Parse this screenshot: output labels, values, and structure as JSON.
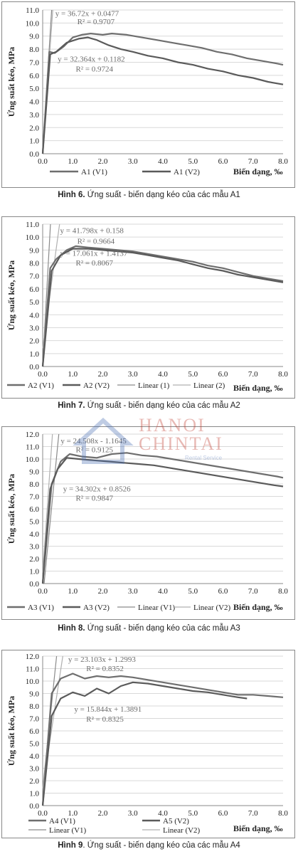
{
  "chart_data": [
    {
      "type": "line",
      "caption_bold": "Hình 6.",
      "caption_rest": " Ứng suất - biến dạng kéo của các mẫu A1",
      "ylabel": "Ứng suất kéo, MPa",
      "xlabel": "Biến dạng, ‰",
      "xlim": [
        0,
        8
      ],
      "ylim": [
        0,
        11
      ],
      "xticks": [
        "0.0",
        "1.0",
        "2.0",
        "3.0",
        "4.0",
        "5.0",
        "6.0",
        "7.0",
        "8.0"
      ],
      "yticks": [
        "0.0",
        "1.0",
        "2.0",
        "3.0",
        "4.0",
        "5.0",
        "6.0",
        "7.0",
        "8.0",
        "9.0",
        "10.0",
        "11.0"
      ],
      "grid": true,
      "legend": [
        "A1 (V1)",
        "A1 (V2)"
      ],
      "annotations": [
        {
          "text": "y = 36.72x + 0.0477",
          "x": 0.42,
          "y": 10.55
        },
        {
          "text": "R² = 0.9707",
          "x": 1.15,
          "y": 9.9
        },
        {
          "text": "y = 32.364x + 0.1182",
          "x": 0.5,
          "y": 7.05
        },
        {
          "text": "R² = 0.9724",
          "x": 1.1,
          "y": 6.3
        }
      ],
      "series": [
        {
          "points": [
            [
              0,
              0
            ],
            [
              0.22,
              7.8
            ],
            [
              0.4,
              7.7
            ],
            [
              0.7,
              8.2
            ],
            [
              1.0,
              8.9
            ],
            [
              1.3,
              9.1
            ],
            [
              1.6,
              9.2
            ],
            [
              2.0,
              9.1
            ],
            [
              2.3,
              9.2
            ],
            [
              2.8,
              9.1
            ],
            [
              3.3,
              8.9
            ],
            [
              3.8,
              8.7
            ],
            [
              4.3,
              8.5
            ],
            [
              4.8,
              8.3
            ],
            [
              5.3,
              8.1
            ],
            [
              5.8,
              7.8
            ],
            [
              6.3,
              7.6
            ],
            [
              6.8,
              7.3
            ],
            [
              7.3,
              7.1
            ],
            [
              7.8,
              6.9
            ],
            [
              8.0,
              6.8
            ]
          ]
        },
        {
          "points": [
            [
              0,
              0
            ],
            [
              0.25,
              7.6
            ],
            [
              0.45,
              7.8
            ],
            [
              0.8,
              8.5
            ],
            [
              1.2,
              8.8
            ],
            [
              1.5,
              8.9
            ],
            [
              1.8,
              8.7
            ],
            [
              2.2,
              8.3
            ],
            [
              2.6,
              8.0
            ],
            [
              3.0,
              7.8
            ],
            [
              3.5,
              7.5
            ],
            [
              4.0,
              7.3
            ],
            [
              4.5,
              7.0
            ],
            [
              5.0,
              6.8
            ],
            [
              5.5,
              6.5
            ],
            [
              6.0,
              6.3
            ],
            [
              6.5,
              6.0
            ],
            [
              7.0,
              5.8
            ],
            [
              7.5,
              5.5
            ],
            [
              8.0,
              5.3
            ]
          ]
        }
      ]
    },
    {
      "type": "line",
      "caption_bold": "Hình 7.",
      "caption_rest": " Ứng suất - biến dạng kéo của các mẫu A2",
      "ylabel": "Ứng suất kéo, MPa",
      "xlabel": "Biến dạng, ‰",
      "xlim": [
        0,
        8
      ],
      "ylim": [
        0,
        11
      ],
      "xticks": [
        "0.0",
        "1.0",
        "2.0",
        "3.0",
        "4.0",
        "5.0",
        "6.0",
        "7.0",
        "8.0"
      ],
      "yticks": [
        "0.0",
        "1.0",
        "2.0",
        "3.0",
        "4.0",
        "5.0",
        "6.0",
        "7.0",
        "8.0",
        "9.0",
        "10.0",
        "11.0"
      ],
      "grid": true,
      "legend": [
        "A2 (V1)",
        "A2 (V2)",
        "Linear (1)",
        "Linear (2)"
      ],
      "annotations": [
        {
          "text": "y = 41.798x + 0.158",
          "x": 0.58,
          "y": 10.3
        },
        {
          "text": "R² = 0.9664",
          "x": 1.15,
          "y": 9.5
        },
        {
          "text": "y = 17.061x + 1.4137",
          "x": 0.58,
          "y": 8.55
        },
        {
          "text": "R² = 0.8067",
          "x": 1.1,
          "y": 7.8
        }
      ],
      "series": [
        {
          "points": [
            [
              0,
              0
            ],
            [
              0.25,
              7.6
            ],
            [
              0.45,
              8.3
            ],
            [
              0.8,
              9.0
            ],
            [
              1.1,
              9.3
            ],
            [
              1.5,
              9.2
            ],
            [
              2.0,
              9.1
            ],
            [
              2.5,
              9.0
            ],
            [
              3.0,
              8.9
            ],
            [
              3.5,
              8.7
            ],
            [
              4.0,
              8.5
            ],
            [
              4.5,
              8.3
            ],
            [
              5.0,
              8.1
            ],
            [
              5.5,
              7.8
            ],
            [
              6.0,
              7.6
            ],
            [
              6.5,
              7.3
            ],
            [
              7.0,
              7.0
            ],
            [
              7.5,
              6.8
            ],
            [
              8.0,
              6.6
            ]
          ]
        },
        {
          "points": [
            [
              0,
              0
            ],
            [
              0.3,
              7.4
            ],
            [
              0.6,
              8.6
            ],
            [
              1.0,
              9.1
            ],
            [
              1.5,
              9.1
            ],
            [
              2.0,
              9.0
            ],
            [
              2.5,
              8.9
            ],
            [
              3.0,
              8.8
            ],
            [
              3.5,
              8.6
            ],
            [
              4.0,
              8.4
            ],
            [
              4.5,
              8.2
            ],
            [
              5.0,
              7.9
            ],
            [
              5.5,
              7.6
            ],
            [
              6.0,
              7.4
            ],
            [
              6.5,
              7.1
            ],
            [
              7.0,
              6.9
            ],
            [
              7.5,
              6.7
            ],
            [
              8.0,
              6.5
            ]
          ]
        }
      ]
    },
    {
      "type": "line",
      "caption_bold": "Hình 8.",
      "caption_rest": " Ứng suất - biến dạng kéo của các mẫu A3",
      "ylabel": "Ứng suất kéo, MPa",
      "xlabel": "Biến dạng, ‰",
      "xlim": [
        0,
        8
      ],
      "ylim": [
        0,
        12
      ],
      "xticks": [
        "0.0",
        "1.0",
        "2.0",
        "3.0",
        "4.0",
        "5.0",
        "6.0",
        "7.0",
        "8.0"
      ],
      "yticks": [
        "0.0",
        "1.0",
        "2.0",
        "3.0",
        "4.0",
        "5.0",
        "6.0",
        "7.0",
        "8.0",
        "9.0",
        "10.0",
        "11.0",
        "12.0"
      ],
      "grid": true,
      "legend": [
        "A3 (V1)",
        "A3 (V2)",
        "Linear (V1)",
        "Linear (V2)"
      ],
      "annotations": [
        {
          "text": "y = 24.508x - 1.1645",
          "x": 0.6,
          "y": 11.25
        },
        {
          "text": "R² = 0.9125",
          "x": 1.1,
          "y": 10.55
        },
        {
          "text": "y = 34.302x + 0.8526",
          "x": 0.68,
          "y": 7.4
        },
        {
          "text": "R² = 0.9847",
          "x": 1.1,
          "y": 6.65
        }
      ],
      "series": [
        {
          "points": [
            [
              0,
              0
            ],
            [
              0.3,
              8.0
            ],
            [
              0.6,
              9.8
            ],
            [
              0.9,
              10.4
            ],
            [
              1.3,
              10.2
            ],
            [
              1.8,
              10.1
            ],
            [
              2.3,
              10.4
            ],
            [
              2.8,
              10.5
            ],
            [
              3.3,
              10.3
            ],
            [
              3.8,
              10.2
            ],
            [
              4.3,
              10.0
            ],
            [
              4.8,
              9.8
            ],
            [
              5.3,
              9.6
            ],
            [
              5.8,
              9.4
            ],
            [
              6.3,
              9.2
            ],
            [
              6.8,
              9.0
            ],
            [
              7.3,
              8.8
            ],
            [
              7.8,
              8.6
            ],
            [
              8.0,
              8.5
            ]
          ]
        },
        {
          "points": [
            [
              0,
              0
            ],
            [
              0.25,
              7.6
            ],
            [
              0.5,
              9.2
            ],
            [
              0.8,
              10.1
            ],
            [
              1.2,
              10.0
            ],
            [
              1.7,
              9.9
            ],
            [
              2.2,
              9.8
            ],
            [
              2.7,
              9.7
            ],
            [
              3.2,
              9.6
            ],
            [
              3.7,
              9.5
            ],
            [
              4.2,
              9.3
            ],
            [
              4.7,
              9.1
            ],
            [
              5.2,
              8.9
            ],
            [
              5.7,
              8.7
            ],
            [
              6.2,
              8.5
            ],
            [
              6.7,
              8.3
            ],
            [
              7.2,
              8.1
            ],
            [
              7.7,
              7.9
            ],
            [
              8.0,
              7.8
            ]
          ]
        }
      ]
    },
    {
      "type": "line",
      "caption_bold": "Hình 9",
      "caption_rest": ". Ứng suất - biến dạng kéo của các mẫu A4",
      "ylabel": "Ứng suất kéo, MPa",
      "xlabel": "Biến dạng, ‰",
      "xlim": [
        0,
        8
      ],
      "ylim": [
        0,
        12
      ],
      "xticks": [
        "0.0",
        "1.0",
        "2.0",
        "3.0",
        "4.0",
        "5.0",
        "6.0",
        "7.0",
        "8.0"
      ],
      "yticks": [
        "0.0",
        "1.0",
        "2.0",
        "3.0",
        "4.0",
        "5.0",
        "6.0",
        "7.0",
        "8.0",
        "9.0",
        "10.0",
        "11.0",
        "12.0"
      ],
      "grid": true,
      "legend": [
        "A4 (V1)",
        "A5 (V2)",
        "Linear (V1)",
        "Linear (V2)"
      ],
      "annotations": [
        {
          "text": "y = 23.103x + 1.2993",
          "x": 0.85,
          "y": 11.55
        },
        {
          "text": "R² = 0.8352",
          "x": 1.45,
          "y": 10.8
        },
        {
          "text": "y = 15.844x + 1.3891",
          "x": 1.05,
          "y": 7.55
        },
        {
          "text": "R² = 0.8325",
          "x": 1.45,
          "y": 6.75
        }
      ],
      "series": [
        {
          "points": [
            [
              0,
              0
            ],
            [
              0.3,
              9.0
            ],
            [
              0.6,
              10.2
            ],
            [
              1.0,
              10.6
            ],
            [
              1.4,
              10.2
            ],
            [
              1.8,
              10.4
            ],
            [
              2.2,
              10.3
            ],
            [
              2.6,
              10.4
            ],
            [
              3.0,
              10.3
            ],
            [
              3.5,
              10.1
            ],
            [
              4.0,
              9.9
            ],
            [
              4.5,
              9.7
            ],
            [
              5.0,
              9.5
            ],
            [
              5.5,
              9.3
            ],
            [
              6.0,
              9.1
            ],
            [
              6.5,
              8.9
            ],
            [
              7.0,
              8.9
            ],
            [
              7.5,
              8.8
            ],
            [
              8.0,
              8.7
            ]
          ]
        },
        {
          "points": [
            [
              0,
              0
            ],
            [
              0.3,
              7.2
            ],
            [
              0.6,
              8.6
            ],
            [
              1.0,
              9.1
            ],
            [
              1.4,
              8.8
            ],
            [
              1.8,
              9.4
            ],
            [
              2.2,
              9.0
            ],
            [
              2.6,
              9.6
            ],
            [
              3.0,
              9.9
            ],
            [
              3.5,
              9.8
            ],
            [
              4.0,
              9.6
            ],
            [
              4.5,
              9.4
            ],
            [
              5.0,
              9.2
            ],
            [
              5.5,
              9.1
            ],
            [
              6.0,
              8.9
            ],
            [
              6.5,
              8.7
            ],
            [
              6.8,
              8.6
            ]
          ]
        }
      ]
    }
  ],
  "watermark": {
    "line1": "HANOI",
    "line2": "CHINTAI",
    "line3": "Rental Service"
  }
}
